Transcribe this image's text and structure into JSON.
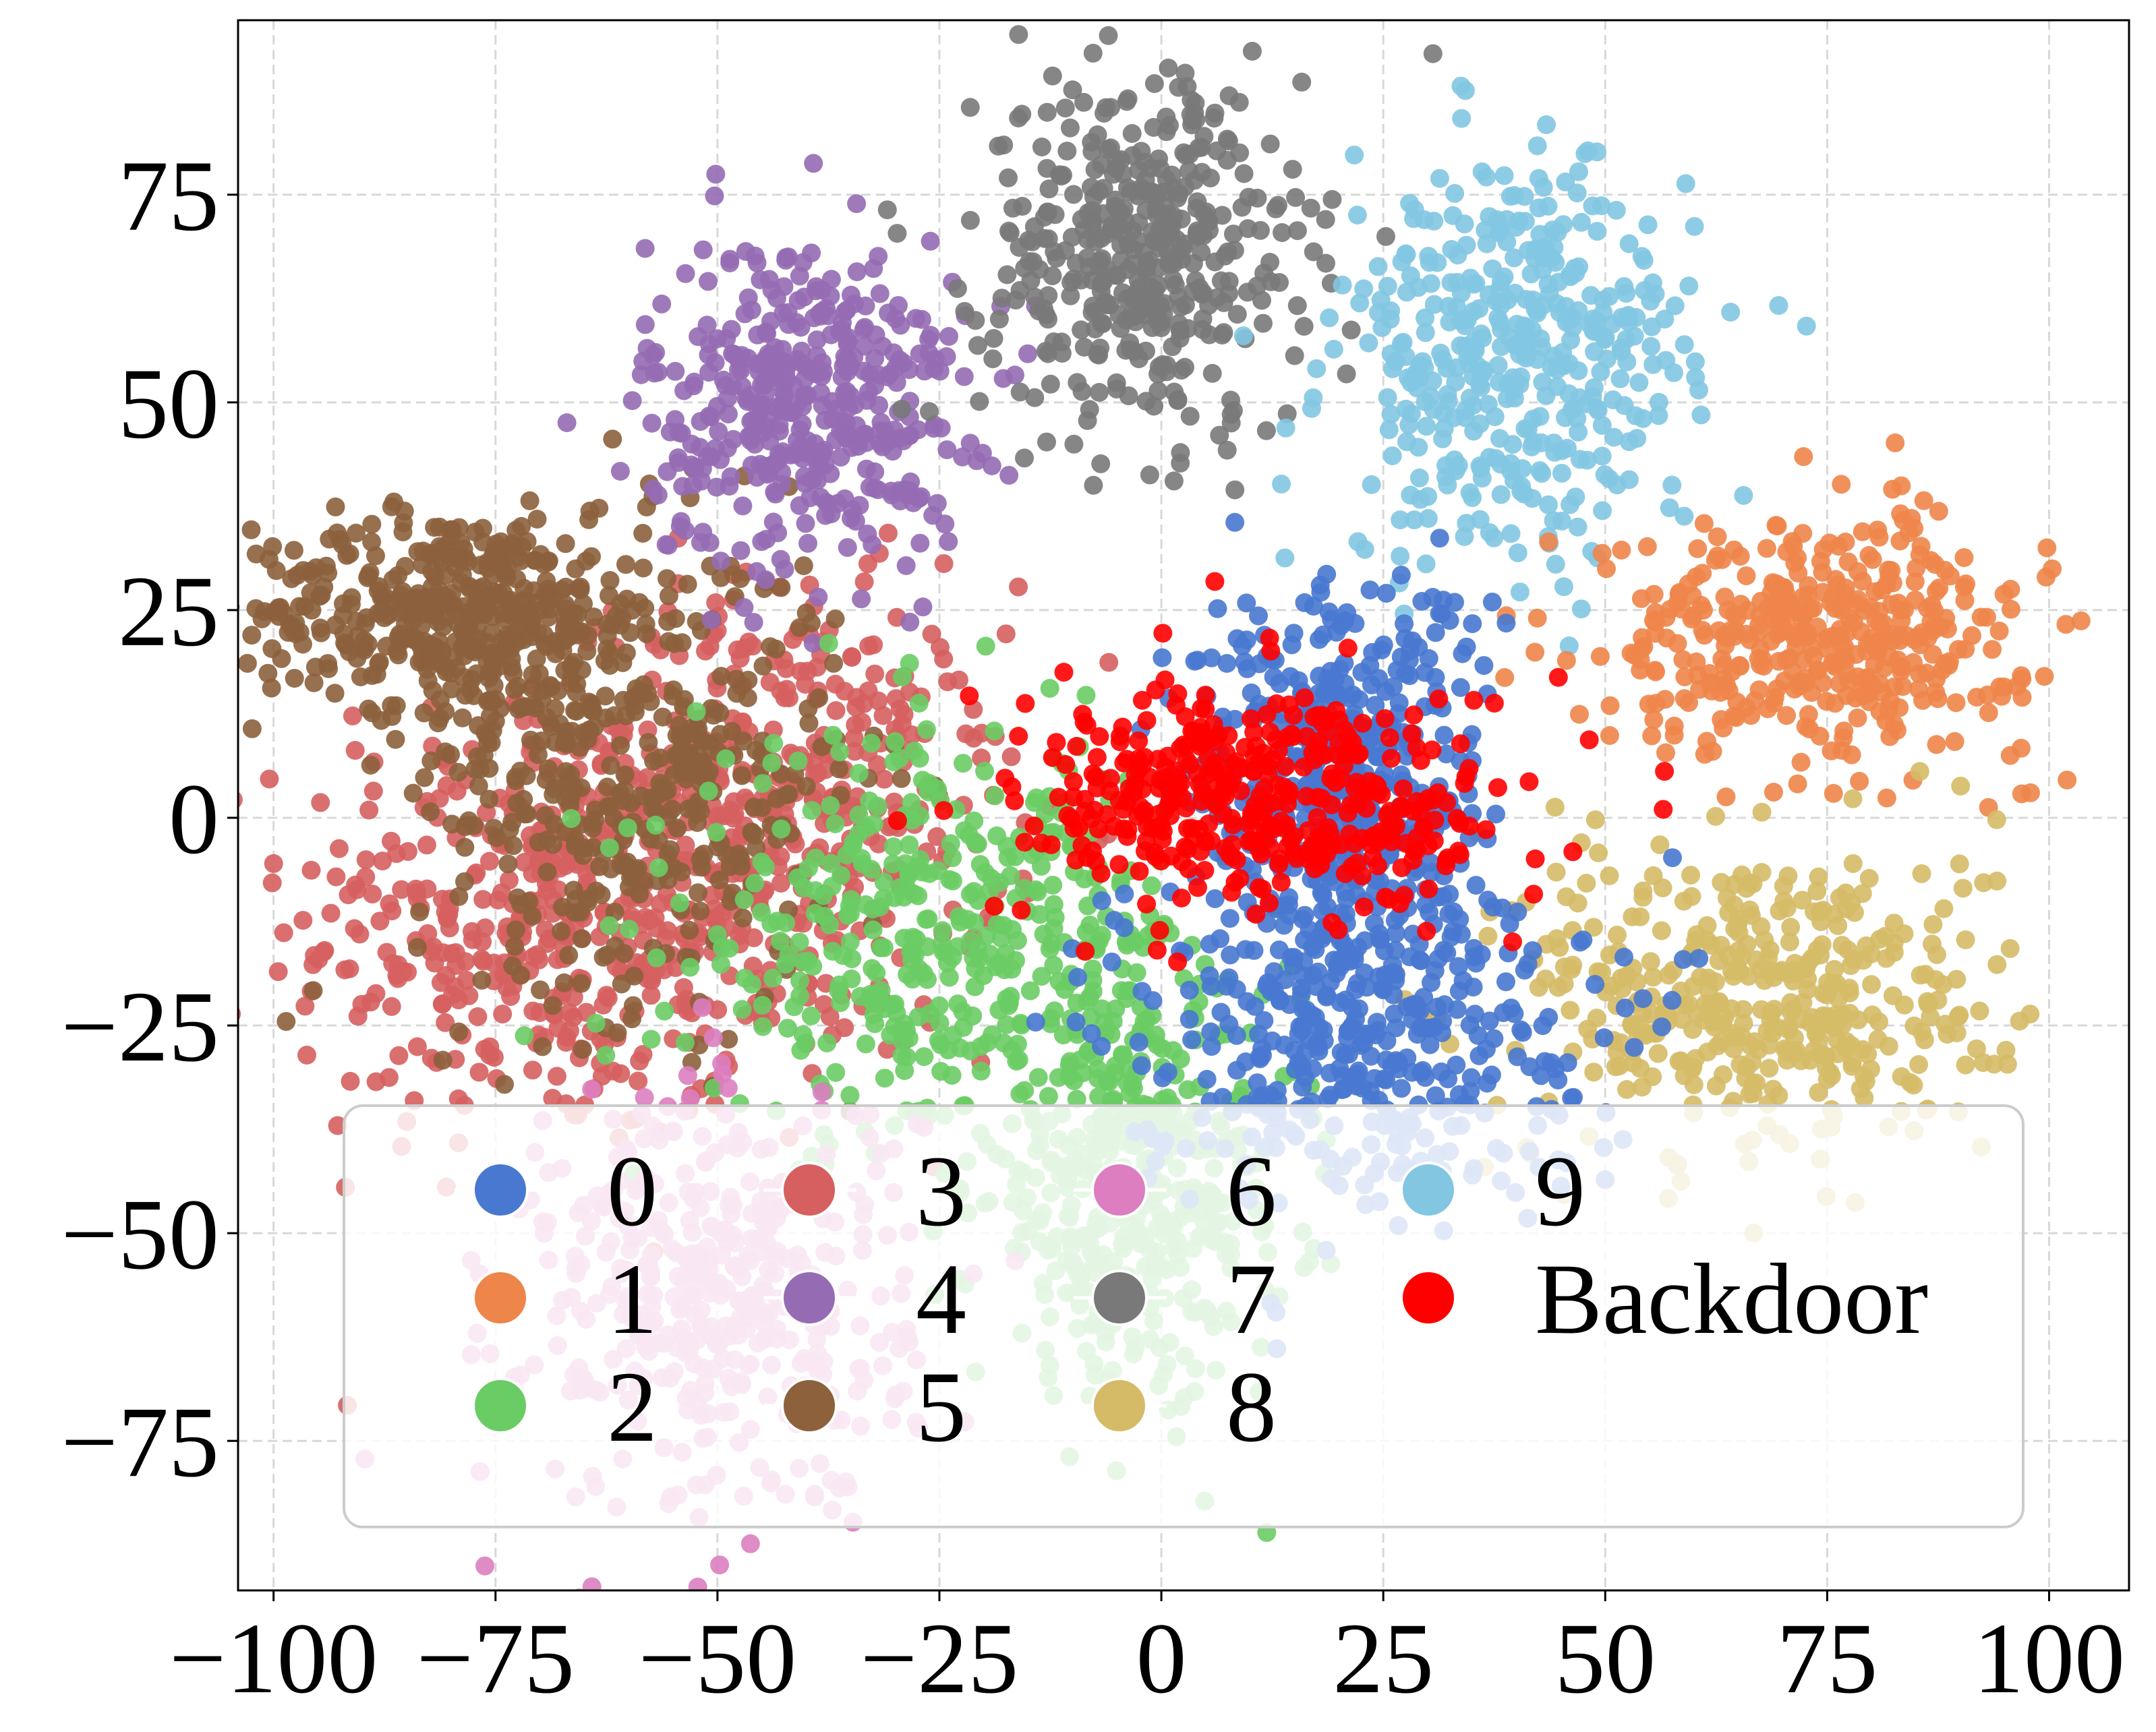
{
  "chart_data": {
    "type": "scatter",
    "title": "",
    "xlabel": "",
    "ylabel": "",
    "xlim": [
      -104,
      109
    ],
    "ylim": [
      -93,
      96
    ],
    "x_ticks": [
      -100,
      -75,
      -50,
      -25,
      0,
      25,
      50,
      75,
      100
    ],
    "y_ticks": [
      -75,
      -50,
      -25,
      0,
      25,
      50,
      75
    ],
    "x_tick_labels": [
      "−100",
      "−75",
      "−50",
      "−25",
      "0",
      "25",
      "50",
      "75",
      "100"
    ],
    "y_tick_labels": [
      "−75",
      "−50",
      "−25",
      "0",
      "25",
      "50",
      "75"
    ],
    "grid": true,
    "legend_placement": "lower-center",
    "legend_columns": 4,
    "series": [
      {
        "name": "0",
        "color": "#4878d0",
        "clusters": [
          {
            "cx": 22,
            "cy": -25,
            "sx": 13,
            "sy": 11
          },
          {
            "cx": 20,
            "cy": 5,
            "sx": 8,
            "sy": 12
          }
        ]
      },
      {
        "name": "1",
        "color": "#ee854a",
        "clusters": [
          {
            "cx": 74,
            "cy": 22,
            "sx": 12,
            "sy": 7
          }
        ]
      },
      {
        "name": "2",
        "color": "#6acc64",
        "clusters": [
          {
            "cx": -3,
            "cy": -45,
            "sx": 9,
            "sy": 12
          },
          {
            "cx": -25,
            "cy": -15,
            "sx": 14,
            "sy": 12
          }
        ]
      },
      {
        "name": "3",
        "color": "#d65f5f",
        "clusters": [
          {
            "cx": -70,
            "cy": -12,
            "sx": 14,
            "sy": 14
          },
          {
            "cx": -42,
            "cy": 0,
            "sx": 12,
            "sy": 14
          }
        ]
      },
      {
        "name": "4",
        "color": "#956cb4",
        "clusters": [
          {
            "cx": -40,
            "cy": 50,
            "sx": 9,
            "sy": 10
          }
        ]
      },
      {
        "name": "5",
        "color": "#8c613c",
        "clusters": [
          {
            "cx": -80,
            "cy": 25,
            "sx": 11,
            "sy": 6
          },
          {
            "cx": -60,
            "cy": 5,
            "sx": 12,
            "sy": 14
          }
        ]
      },
      {
        "name": "6",
        "color": "#dc7ec0",
        "clusters": [
          {
            "cx": -50,
            "cy": -58,
            "sx": 11,
            "sy": 13
          }
        ]
      },
      {
        "name": "7",
        "color": "#797979",
        "clusters": [
          {
            "cx": -2,
            "cy": 68,
            "sx": 9,
            "sy": 11
          }
        ]
      },
      {
        "name": "8",
        "color": "#d5bb67",
        "clusters": [
          {
            "cx": 68,
            "cy": -22,
            "sx": 13,
            "sy": 10
          }
        ]
      },
      {
        "name": "9",
        "color": "#82c6e2",
        "clusters": [
          {
            "cx": 40,
            "cy": 55,
            "sx": 10,
            "sy": 12
          }
        ]
      },
      {
        "name": "Backdoor",
        "color": "#ff0000",
        "clusters": [
          {
            "cx": 12,
            "cy": 2,
            "sx": 14,
            "sy": 7
          }
        ]
      }
    ]
  }
}
